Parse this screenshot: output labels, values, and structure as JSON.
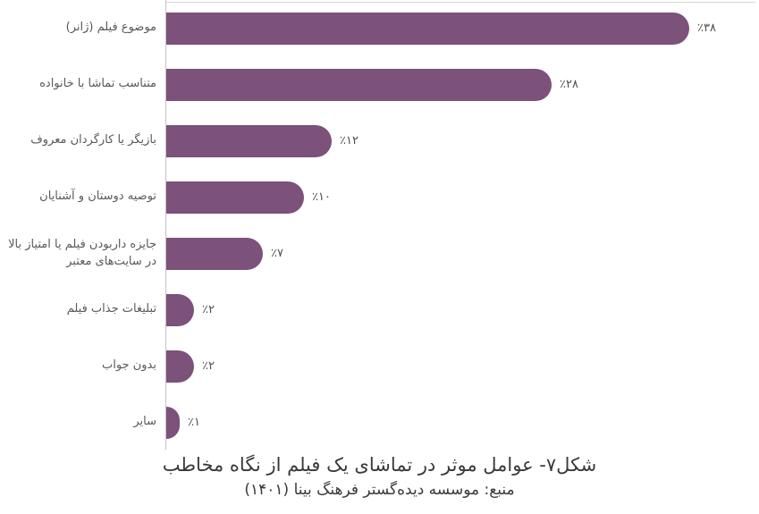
{
  "chart_data": {
    "type": "bar",
    "orientation": "horizontal",
    "categories": [
      "موضوع فیلم (ژانر)",
      "متناسب تماشا با خانواده",
      "بازیگر یا کارگردان معروف",
      "توصیه دوستان و آشنایان",
      "جایزه داربودن فیلم یا امتیاز بالا\nدر سایت‌های معتبر",
      "تبلیغات جذاب فیلم",
      "بدون جواب",
      "سایر"
    ],
    "values": [
      38,
      28,
      12,
      10,
      7,
      2,
      2,
      1
    ],
    "value_labels": [
      "٪۳۸",
      "٪۲۸",
      "٪۱۲",
      "٪۱۰",
      "٪۷",
      "٪۲",
      "٪۲",
      "٪۱"
    ],
    "xlim": [
      0,
      40
    ],
    "grid": "off",
    "legend": "none",
    "title": "شکل۷- عوامل موثر در تماشای یک فیلم از نگاه مخاطب",
    "source": "منبع: موسسه دیده‌گستر فرهنگ بینا (۱۴۰۱)"
  },
  "caption": {
    "title": "شکل۷- عوامل موثر در تماشای یک فیلم از نگاه مخاطب",
    "source": "منبع: موسسه دیده‌گستر فرهنگ بینا (۱۴۰۱)"
  },
  "colors": {
    "bar": "#7c517a",
    "axis_line": "#c6c1c6",
    "label_text": "#595959",
    "value_text": "#4f4f4f",
    "caption_text": "#3a3a3a",
    "background": "#ffffff"
  }
}
